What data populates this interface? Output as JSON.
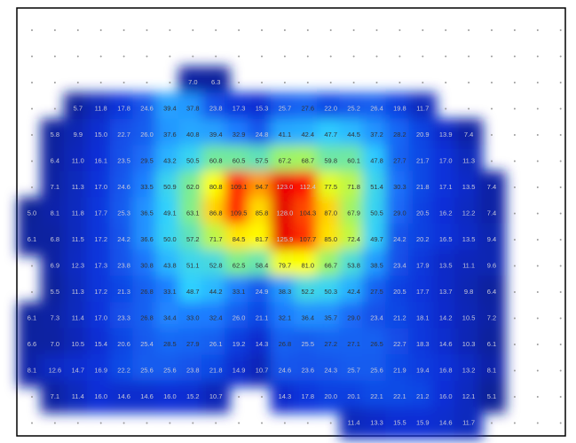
{
  "chart_data": {
    "type": "heatmap",
    "zlim": [
      0,
      130
    ],
    "colorscale": [
      "#0c1a7a",
      "#0a2fd8",
      "#1e7cff",
      "#2fd0ff",
      "#8bf27a",
      "#ffff00",
      "#ff8000",
      "#ff0000",
      "#e00000"
    ],
    "values": [
      [
        null,
        null,
        null,
        null,
        null,
        null,
        null,
        null,
        null,
        null,
        null,
        null,
        null,
        null,
        null,
        null,
        null,
        null,
        null,
        null,
        null,
        null,
        null,
        null
      ],
      [
        null,
        null,
        null,
        null,
        null,
        null,
        null,
        null,
        null,
        null,
        null,
        null,
        null,
        null,
        null,
        null,
        null,
        null,
        null,
        null,
        null,
        null,
        null,
        null
      ],
      [
        null,
        null,
        null,
        null,
        null,
        null,
        null,
        7.0,
        6.3,
        null,
        null,
        null,
        null,
        null,
        null,
        null,
        null,
        null,
        null,
        null,
        null,
        null,
        null,
        null
      ],
      [
        null,
        null,
        5.7,
        11.8,
        17.8,
        24.6,
        39.4,
        37.8,
        23.8,
        17.3,
        15.3,
        25.7,
        27.6,
        22.0,
        25.2,
        26.4,
        19.8,
        11.7,
        null,
        null,
        null,
        null,
        null,
        null
      ],
      [
        null,
        5.8,
        9.9,
        15.0,
        22.7,
        26.0,
        37.6,
        40.8,
        39.4,
        32.9,
        24.8,
        41.1,
        42.4,
        47.7,
        44.5,
        37.2,
        28.2,
        20.9,
        13.9,
        7.4,
        null,
        null,
        null,
        null
      ],
      [
        null,
        6.4,
        11.0,
        16.1,
        23.5,
        29.5,
        43.2,
        50.5,
        60.8,
        60.5,
        57.5,
        67.2,
        68.7,
        59.8,
        60.1,
        47.8,
        27.7,
        21.7,
        17.0,
        11.3,
        null,
        null,
        null,
        null
      ],
      [
        null,
        7.1,
        11.3,
        17.0,
        24.6,
        33.5,
        50.9,
        62.0,
        80.8,
        109.1,
        94.7,
        123.0,
        112.4,
        77.5,
        71.8,
        51.4,
        30.3,
        21.8,
        17.1,
        13.5,
        7.4,
        null,
        null,
        null
      ],
      [
        5.0,
        8.1,
        11.8,
        17.7,
        25.3,
        36.5,
        49.1,
        63.1,
        86.8,
        109.5,
        85.8,
        128.0,
        104.3,
        87.0,
        67.9,
        50.5,
        29.0,
        20.5,
        16.2,
        12.2,
        7.4,
        null,
        null,
        null
      ],
      [
        6.1,
        6.8,
        11.5,
        17.2,
        24.2,
        36.6,
        50.0,
        57.2,
        71.7,
        84.5,
        81.7,
        125.9,
        107.7,
        85.0,
        72.4,
        49.7,
        24.2,
        20.2,
        16.5,
        13.5,
        9.4,
        null,
        null,
        null
      ],
      [
        null,
        6.9,
        12.3,
        17.3,
        23.8,
        30.8,
        43.8,
        51.1,
        52.8,
        62.5,
        58.4,
        79.7,
        81.0,
        66.7,
        53.8,
        38.5,
        23.4,
        17.9,
        13.5,
        11.1,
        9.6,
        null,
        null,
        null
      ],
      [
        null,
        5.5,
        11.3,
        17.2,
        21.3,
        26.8,
        33.1,
        48.7,
        44.2,
        33.1,
        24.9,
        38.3,
        52.2,
        50.3,
        42.4,
        27.5,
        20.5,
        17.7,
        13.7,
        9.8,
        6.4,
        null,
        null,
        null
      ],
      [
        6.1,
        7.3,
        11.4,
        17.0,
        23.3,
        26.8,
        34.4,
        33.0,
        32.4,
        26.0,
        21.1,
        32.1,
        36.4,
        35.7,
        29.0,
        23.4,
        21.2,
        18.1,
        14.2,
        10.5,
        7.2,
        null,
        null,
        null
      ],
      [
        6.6,
        7.0,
        10.5,
        15.4,
        20.6,
        25.4,
        28.5,
        27.9,
        26.1,
        19.2,
        14.3,
        26.8,
        25.5,
        27.2,
        27.1,
        26.5,
        22.7,
        18.3,
        14.6,
        10.3,
        6.1,
        null,
        null,
        null
      ],
      [
        8.1,
        12.6,
        14.7,
        16.9,
        22.2,
        25.6,
        25.6,
        23.8,
        21.8,
        14.9,
        10.7,
        24.6,
        23.6,
        24.3,
        25.7,
        25.6,
        21.9,
        19.4,
        16.8,
        13.2,
        8.1,
        null,
        null,
        null
      ],
      [
        null,
        7.1,
        11.4,
        16.0,
        14.6,
        14.6,
        16.0,
        15.2,
        10.7,
        null,
        null,
        14.3,
        17.8,
        20.0,
        20.1,
        22.1,
        22.1,
        21.2,
        16.0,
        12.1,
        5.1,
        null,
        null,
        null
      ],
      [
        null,
        null,
        null,
        null,
        null,
        null,
        null,
        null,
        null,
        null,
        null,
        null,
        null,
        null,
        11.4,
        13.3,
        15.5,
        15.9,
        14.6,
        11.7,
        null,
        null,
        null,
        null
      ]
    ],
    "value_labels": [
      [
        null,
        null,
        null,
        null,
        null,
        null,
        null,
        null,
        null,
        null,
        null,
        null,
        null,
        null,
        null,
        null,
        null,
        null,
        null,
        null,
        null,
        null,
        null,
        null
      ],
      [
        null,
        null,
        null,
        null,
        null,
        null,
        null,
        null,
        null,
        null,
        null,
        null,
        null,
        null,
        null,
        null,
        null,
        null,
        null,
        null,
        null,
        null,
        null,
        null
      ],
      [
        null,
        null,
        null,
        null,
        null,
        null,
        null,
        "7.0",
        "6.3",
        null,
        null,
        null,
        null,
        null,
        null,
        null,
        null,
        null,
        null,
        null,
        null,
        null,
        null,
        null
      ],
      [
        null,
        null,
        "5.7",
        "11.8",
        "17.8",
        "24.6",
        "39.4",
        "37.8",
        "23.8",
        "17.3",
        "15.3",
        "25.7",
        "27.6",
        "22.0",
        "25.2",
        "26.4",
        "19.8",
        "11.7",
        null,
        null,
        null,
        null,
        null,
        null
      ],
      [
        null,
        "5.8",
        "9.9",
        "15.0",
        "22.7",
        "26.0",
        "37.6",
        "40.8",
        "39.4",
        "32.9",
        "24.8",
        "41.1",
        "42.4",
        "47.7",
        "44.5",
        "37.2",
        "28.2",
        "20.9",
        "13.9",
        "7.4",
        null,
        null,
        null,
        null
      ],
      [
        null,
        "6.4",
        "11.0",
        "16.1",
        "23.5",
        "29.5",
        "43.2",
        "50.5",
        "60.8",
        "60.5",
        "57.5",
        "67.2",
        "68.7",
        "59.8",
        "60.1",
        "47.8",
        "27.7",
        "21.7",
        "17.0",
        "11.3",
        null,
        null,
        null,
        null
      ],
      [
        null,
        "7.1",
        "11.3",
        "17.0",
        "24.6",
        "33.5",
        "50.9",
        "62.0",
        "80.8",
        "109.1",
        "94.7",
        "123.0",
        "112.4",
        "77.5",
        "71.8",
        "51.4",
        "30.3",
        "21.8",
        "17.1",
        "13.5",
        "7.4",
        null,
        null,
        null
      ],
      [
        "5.0",
        "8.1",
        "11.8",
        "17.7",
        "25.3",
        "36.5",
        "49.1",
        "63.1",
        "86.8",
        "109.5",
        "85.8",
        "128.0",
        "104.3",
        "87.0",
        "67.9",
        "50.5",
        "29.0",
        "20.5",
        "16.2",
        "12.2",
        "7.4",
        null,
        null,
        null
      ],
      [
        "6.1",
        "6.8",
        "11.5",
        "17.2",
        "24.2",
        "36.6",
        "50.0",
        "57.2",
        "71.7",
        "84.5",
        "81.7",
        "125.9",
        "107.7",
        "85.0",
        "72.4",
        "49.7",
        "24.2",
        "20.2",
        "16.5",
        "13.5",
        "9.4",
        null,
        null,
        null
      ],
      [
        null,
        "6.9",
        "12.3",
        "17.3",
        "23.8",
        "30.8",
        "43.8",
        "51.1",
        "52.8",
        "62.5",
        "58.4",
        "79.7",
        "81.0",
        "66.7",
        "53.8",
        "38.5",
        "23.4",
        "17.9",
        "13.5",
        "11.1",
        "9.6",
        null,
        null,
        null
      ],
      [
        null,
        "5.5",
        "11.3",
        "17.2",
        "21.3",
        "26.8",
        "33.1",
        "48.7",
        "44.2",
        "33.1",
        "24.9",
        "38.3",
        "52.2",
        "50.3",
        "42.4",
        "27.5",
        "20.5",
        "17.7",
        "13.7",
        "9.8",
        "6.4",
        null,
        null,
        null
      ],
      [
        "6.1",
        "7.3",
        "11.4",
        "17.0",
        "23.3",
        "26.8",
        "34.4",
        "33.0",
        "32.4",
        "26.0",
        "21.1",
        "32.1",
        "36.4",
        "35.7",
        "29.0",
        "23.4",
        "21.2",
        "18.1",
        "14.2",
        "10.5",
        "7.2",
        null,
        null,
        null
      ],
      [
        "6.6",
        "7.0",
        "10.5",
        "15.4",
        "20.6",
        "25.4",
        "28.5",
        "27.9",
        "26.1",
        "19.2",
        "14.3",
        "26.8",
        "25.5",
        "27.2",
        "27.1",
        "26.5",
        "22.7",
        "18.3",
        "14.6",
        "10.3",
        "6.1",
        null,
        null,
        null
      ],
      [
        "8.1",
        "12.6",
        "14.7",
        "16.9",
        "22.2",
        "25.6",
        "25.6",
        "23.8",
        "21.8",
        "14.9",
        "10.7",
        "24.6",
        "23.6",
        "24.3",
        "25.7",
        "25.6",
        "21.9",
        "19.4",
        "16.8",
        "13.2",
        "8.1",
        null,
        null,
        null
      ],
      [
        null,
        "7.1",
        "11.4",
        "16.0",
        "14.6",
        "14.6",
        "16.0",
        "15.2",
        "10.7",
        null,
        null,
        "14.3",
        "17.8",
        "20.0",
        "20.1",
        "22.1",
        "22.1",
        "21.2",
        "16.0",
        "12.1",
        "5.1",
        null,
        null,
        null
      ],
      [
        null,
        null,
        null,
        null,
        null,
        null,
        null,
        null,
        null,
        null,
        null,
        null,
        null,
        null,
        "11.4",
        "13.3",
        "15.5",
        "15.9",
        "14.6",
        "11.7",
        null,
        null,
        null,
        null
      ]
    ]
  }
}
